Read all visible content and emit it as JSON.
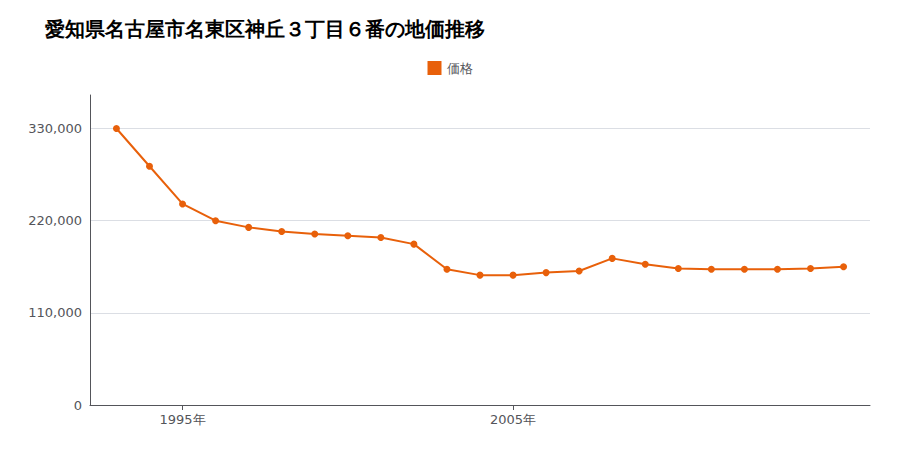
{
  "chart_data": {
    "type": "line",
    "title": "愛知県名古屋市名東区神丘３丁目６番の地価推移",
    "x": [
      1993,
      1994,
      1995,
      1996,
      1997,
      1998,
      1999,
      2000,
      2001,
      2002,
      2003,
      2004,
      2005,
      2006,
      2007,
      2008,
      2009,
      2010,
      2011,
      2012,
      2013,
      2014,
      2015
    ],
    "series": [
      {
        "name": "価格",
        "color": "#e8600a",
        "marker": "circle",
        "values": [
          330000,
          285000,
          240000,
          220000,
          212000,
          207000,
          204000,
          202000,
          200000,
          192000,
          162000,
          155000,
          155000,
          158000,
          160000,
          175000,
          168000,
          163000,
          162000,
          162000,
          162000,
          163000,
          165000
        ]
      }
    ],
    "xlim": [
      1992.2,
      2015.8
    ],
    "xticks": [
      {
        "value": 1995,
        "label": "1995年"
      },
      {
        "value": 2005,
        "label": "2005年"
      }
    ],
    "ylim": [
      0,
      370000
    ],
    "yticks": [
      0,
      {
        "value": 110000,
        "label": "110,000"
      },
      {
        "value": 220000,
        "label": "220,000"
      },
      {
        "value": 330000,
        "label": "330,000"
      }
    ],
    "grid": true
  }
}
